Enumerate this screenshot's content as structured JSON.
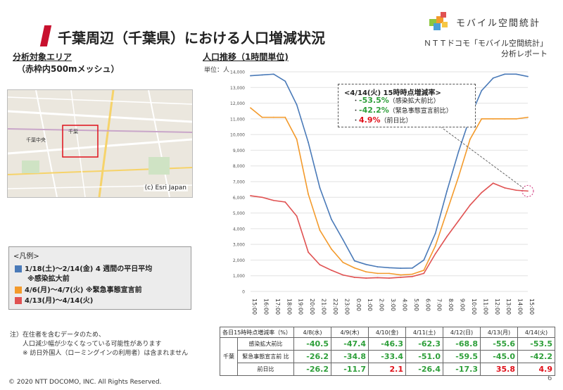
{
  "header": {
    "title": "千葉周辺（千葉県）における人口増減状況",
    "logo_text": "モバイル空間統計",
    "org_line1": "ＮＴＴドコモ「モバイル空間統計」",
    "org_line2": "分析レポート"
  },
  "area": {
    "heading": "分析対象エリア",
    "sub": "（赤枠内500mメッシュ）",
    "map_credit": "(c) Esri Japan",
    "map_label_station": "千葉",
    "map_label_city": "千葉中央"
  },
  "population": {
    "heading": "人口推移（1時間単位)",
    "unit": "単位：人"
  },
  "legend": {
    "title": "<凡例>",
    "items": [
      {
        "label": "1/18(土)～2/14(金) 4 週間の平日平均",
        "sub": "※感染拡大前",
        "color": "#4a7ab8"
      },
      {
        "label": "4/6(月)～4/7(火) ※緊急事態宣言前",
        "sub": "",
        "color": "#f39a2b"
      },
      {
        "label": "4/13(月)～4/14(火)",
        "sub": "",
        "color": "#e05252"
      }
    ]
  },
  "callout": {
    "title": "<4/14(火) 15時時点増減率>",
    "rows": [
      {
        "bullet": "・",
        "value": "-53.5%",
        "desc": "（感染拡大前比）",
        "color": "#2e9f3a"
      },
      {
        "bullet": "・",
        "value": "-42.2%",
        "desc": "（緊急事態宣言前比）",
        "color": "#2e9f3a"
      },
      {
        "bullet": "・",
        "value": "4.9%",
        "desc": "（前日比）",
        "color": "#e0101a"
      }
    ]
  },
  "chart_data": {
    "type": "line",
    "title": "",
    "xlabel": "",
    "ylabel": "単位：人",
    "ylim": [
      0,
      14000
    ],
    "yticks": [
      "0",
      "1,000",
      "2,000",
      "3,000",
      "4,000",
      "5,000",
      "6,000",
      "7,000",
      "8,000",
      "9,000",
      "10,000",
      "11,000",
      "12,000",
      "13,000",
      "14,000"
    ],
    "categories": [
      "15:00",
      "16:00",
      "17:00",
      "18:00",
      "19:00",
      "20:00",
      "21:00",
      "22:00",
      "23:00",
      "0:00",
      "1:00",
      "2:00",
      "3:00",
      "4:00",
      "5:00",
      "6:00",
      "7:00",
      "8:00",
      "9:00",
      "10:00",
      "11:00",
      "12:00",
      "13:00",
      "14:00",
      "15:00"
    ],
    "series": [
      {
        "name": "1/18(土)～2/14(金) 4 週間の平日平均",
        "color": "#4a7ab8",
        "values": [
          13750,
          13800,
          13850,
          13400,
          11900,
          9500,
          6600,
          4600,
          3300,
          1950,
          1720,
          1570,
          1510,
          1480,
          1490,
          2000,
          3700,
          6400,
          8900,
          11100,
          12800,
          13600,
          13850,
          13850,
          13700
        ]
      },
      {
        "name": "4/6(月)～4/7(火) ※緊急事態宣言前",
        "color": "#f39a2b",
        "values": [
          11700,
          11100,
          11100,
          11100,
          9700,
          6200,
          3900,
          2700,
          1850,
          1500,
          1250,
          1150,
          1150,
          1050,
          1100,
          1350,
          2900,
          5100,
          7300,
          9700,
          11000,
          11000,
          11000,
          11000,
          11100
        ]
      },
      {
        "name": "4/13(月)～4/14(火)",
        "color": "#e05252",
        "values": [
          6100,
          6000,
          5800,
          5700,
          4800,
          2500,
          1700,
          1350,
          1050,
          900,
          850,
          880,
          850,
          900,
          950,
          1150,
          2400,
          3500,
          4500,
          5500,
          6300,
          6900,
          6600,
          6450,
          6400
        ]
      }
    ]
  },
  "table": {
    "header": [
      "各日15時時点増減率（%）",
      "4/8(水)",
      "4/9(木)",
      "4/10(金)",
      "4/11(土)",
      "4/12(日)",
      "4/13(月)",
      "4/14(火)"
    ],
    "group_label": "千葉",
    "rows": [
      {
        "label": "感染拡大前比",
        "values": [
          "-40.5",
          "-47.4",
          "-46.3",
          "-62.3",
          "-68.8",
          "-55.6",
          "-53.5"
        ],
        "colors": [
          "g",
          "g",
          "g",
          "g",
          "g",
          "g",
          "g"
        ]
      },
      {
        "label": "緊急事態宣言前 比",
        "values": [
          "-26.2",
          "-34.8",
          "-33.4",
          "-51.0",
          "-59.5",
          "-45.0",
          "-42.2"
        ],
        "colors": [
          "g",
          "g",
          "g",
          "g",
          "g",
          "g",
          "g"
        ]
      },
      {
        "label": "前日比",
        "values": [
          "-26.2",
          "-11.7",
          "2.1",
          "-26.4",
          "-17.3",
          "35.8",
          "4.9"
        ],
        "colors": [
          "g",
          "g",
          "r",
          "g",
          "g",
          "r",
          "r"
        ]
      }
    ]
  },
  "notes": {
    "line1": "注）在住者を含むデータのため、",
    "line2": "人口減少幅が少なくなっている可能性があります",
    "line3": "※ 訪日外国人（ローミングインの利用者）は含まれません"
  },
  "footer": {
    "copyright": "© 2020 NTT DOCOMO, INC. All Rights Reserved.",
    "page": "6"
  }
}
